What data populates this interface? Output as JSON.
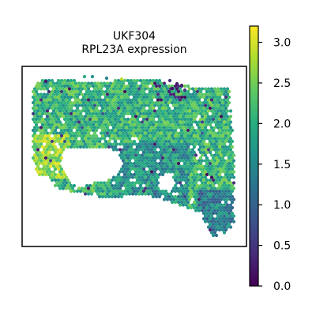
{
  "chart_data": {
    "type": "scatter",
    "title": "UKF304",
    "subtitle": "RPL23A expression",
    "xlabel": "",
    "ylabel": "",
    "grid": false,
    "colormap": "viridis",
    "colorbar": {
      "min": 0.0,
      "max": 3.2,
      "ticks": [
        0.0,
        0.5,
        1.0,
        1.5,
        2.0,
        2.5,
        3.0
      ],
      "tick_labels": [
        "0.0",
        "0.5",
        "1.0",
        "1.5",
        "2.0",
        "2.5",
        "3.0"
      ]
    },
    "value_summary": {
      "typical_range": [
        1.5,
        2.6
      ],
      "high_region": "left",
      "low_spots": "top edge"
    }
  }
}
